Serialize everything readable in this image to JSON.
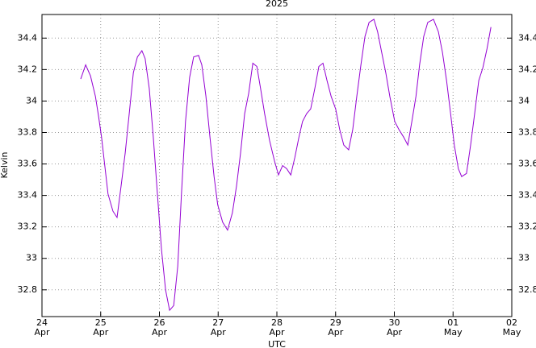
{
  "chart_data": {
    "type": "line",
    "title": "2025",
    "x_label": "UTC",
    "y_label": "Kelvin",
    "xlim": [
      "2025-04-24T00:00",
      "2025-05-02T00:00"
    ],
    "xticks": [
      {
        "value": "2025-04-24T00:00",
        "label": "24\nApr"
      },
      {
        "value": "2025-04-25T00:00",
        "label": "25\nApr"
      },
      {
        "value": "2025-04-26T00:00",
        "label": "26\nApr"
      },
      {
        "value": "2025-04-27T00:00",
        "label": "27\nApr"
      },
      {
        "value": "2025-04-28T00:00",
        "label": "28\nApr"
      },
      {
        "value": "2025-04-29T00:00",
        "label": "29\nApr"
      },
      {
        "value": "2025-04-30T00:00",
        "label": "30\nApr"
      },
      {
        "value": "2025-05-01T00:00",
        "label": "01\nMay"
      },
      {
        "value": "2025-05-02T00:00",
        "label": "02\nMay"
      }
    ],
    "ylim": [
      32.63,
      34.55
    ],
    "yticks": [
      32.8,
      33,
      33.2,
      33.4,
      33.6,
      33.8,
      34,
      34.2,
      34.4
    ],
    "grid": true,
    "x": [
      "2025-04-24T15:50",
      "2025-04-24T17:50",
      "2025-04-24T19:50",
      "2025-04-24T21:50",
      "2025-04-24T23:10",
      "2025-04-25T00:20",
      "2025-04-25T01:40",
      "2025-04-25T03:00",
      "2025-04-25T05:00",
      "2025-04-25T06:40",
      "2025-04-25T08:20",
      "2025-04-25T10:00",
      "2025-04-25T11:40",
      "2025-04-25T13:20",
      "2025-04-25T15:00",
      "2025-04-25T16:50",
      "2025-04-25T18:10",
      "2025-04-25T19:50",
      "2025-04-25T21:30",
      "2025-04-25T23:10",
      "2025-04-26T00:50",
      "2025-04-26T02:30",
      "2025-04-26T04:10",
      "2025-04-26T05:50",
      "2025-04-26T07:30",
      "2025-04-26T09:00",
      "2025-04-26T10:40",
      "2025-04-26T12:20",
      "2025-04-26T14:00",
      "2025-04-26T16:00",
      "2025-04-26T17:20",
      "2025-04-26T19:00",
      "2025-04-26T20:40",
      "2025-04-26T22:20",
      "2025-04-26T23:50",
      "2025-04-27T01:50",
      "2025-04-27T03:50",
      "2025-04-27T05:50",
      "2025-04-27T07:30",
      "2025-04-27T09:10",
      "2025-04-27T10:50",
      "2025-04-27T12:30",
      "2025-04-27T14:10",
      "2025-04-27T15:50",
      "2025-04-27T17:20",
      "2025-04-27T19:00",
      "2025-04-27T21:00",
      "2025-04-27T23:00",
      "2025-04-28T00:40",
      "2025-04-28T02:20",
      "2025-04-28T04:00",
      "2025-04-28T05:40",
      "2025-04-28T07:20",
      "2025-04-28T09:00",
      "2025-04-28T10:30",
      "2025-04-28T12:10",
      "2025-04-28T13:50",
      "2025-04-28T15:30",
      "2025-04-28T17:10",
      "2025-04-28T18:50",
      "2025-04-28T20:30",
      "2025-04-28T22:10",
      "2025-04-29T00:00",
      "2025-04-29T01:40",
      "2025-04-29T03:20",
      "2025-04-29T05:20",
      "2025-04-29T07:00",
      "2025-04-29T08:40",
      "2025-04-29T10:20",
      "2025-04-29T12:00",
      "2025-04-29T13:40",
      "2025-04-29T15:40",
      "2025-04-29T17:10",
      "2025-04-29T18:50",
      "2025-04-29T20:30",
      "2025-04-29T22:10",
      "2025-04-30T00:10",
      "2025-04-30T01:50",
      "2025-04-30T03:50",
      "2025-04-30T05:30",
      "2025-04-30T07:10",
      "2025-04-30T08:50",
      "2025-04-30T10:20",
      "2025-04-30T12:00",
      "2025-04-30T13:40",
      "2025-04-30T16:00",
      "2025-04-30T18:00",
      "2025-04-30T19:40",
      "2025-04-30T21:20",
      "2025-04-30T23:00",
      "2025-05-01T00:30",
      "2025-05-01T02:10",
      "2025-05-01T03:30",
      "2025-05-01T05:30",
      "2025-05-01T07:10",
      "2025-05-01T08:50",
      "2025-05-01T10:30",
      "2025-05-01T12:10",
      "2025-05-01T13:50",
      "2025-05-01T15:30"
    ],
    "series": [
      {
        "color": "#9400d3",
        "values": [
          34.14,
          34.23,
          34.16,
          34.03,
          33.9,
          33.77,
          33.59,
          33.41,
          33.3,
          33.26,
          33.46,
          33.67,
          33.92,
          34.18,
          34.28,
          34.32,
          34.27,
          34.08,
          33.77,
          33.41,
          33.06,
          32.8,
          32.67,
          32.7,
          32.95,
          33.41,
          33.87,
          34.15,
          34.28,
          34.29,
          34.23,
          34.03,
          33.77,
          33.52,
          33.34,
          33.23,
          33.18,
          33.29,
          33.46,
          33.67,
          33.92,
          34.05,
          34.24,
          34.22,
          34.08,
          33.92,
          33.75,
          33.62,
          33.53,
          33.59,
          33.57,
          33.53,
          33.64,
          33.77,
          33.87,
          33.92,
          33.95,
          34.08,
          34.22,
          34.24,
          34.13,
          34.03,
          33.95,
          33.82,
          33.72,
          33.69,
          33.82,
          34.03,
          34.23,
          34.41,
          34.5,
          34.52,
          34.44,
          34.31,
          34.18,
          34.03,
          33.87,
          33.82,
          33.77,
          33.72,
          33.87,
          34.03,
          34.23,
          34.41,
          34.5,
          34.52,
          34.44,
          34.31,
          34.13,
          33.92,
          33.72,
          33.57,
          33.52,
          33.54,
          33.72,
          33.92,
          34.13,
          34.21,
          34.33,
          34.47
        ]
      }
    ]
  }
}
